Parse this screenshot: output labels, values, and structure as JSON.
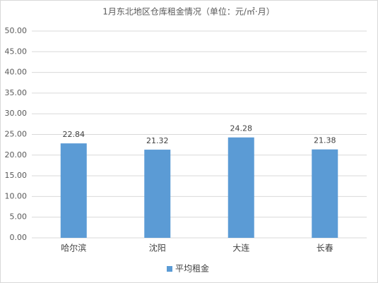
{
  "chart_data": {
    "type": "bar",
    "title": "1月东北地区仓库租金情况（单位：元/㎡·月）",
    "categories": [
      "哈尔滨",
      "沈阳",
      "大连",
      "长春"
    ],
    "series": [
      {
        "name": "平均租金",
        "color": "#5b9bd5",
        "values": [
          22.84,
          21.32,
          24.28,
          21.38
        ]
      }
    ],
    "ylim": [
      0,
      50
    ],
    "yticks": [
      {
        "value": 0,
        "label": "0.00"
      },
      {
        "value": 5,
        "label": "5.00"
      },
      {
        "value": 10,
        "label": "10.00"
      },
      {
        "value": 15,
        "label": "15.00"
      },
      {
        "value": 20,
        "label": "20.00"
      },
      {
        "value": 25,
        "label": "25.00"
      },
      {
        "value": 30,
        "label": "30.00"
      },
      {
        "value": 35,
        "label": "35.00"
      },
      {
        "value": 40,
        "label": "40.00"
      },
      {
        "value": 45,
        "label": "45.00"
      },
      {
        "value": 50,
        "label": "50.00"
      }
    ],
    "grid": true,
    "legend": "bottom"
  }
}
